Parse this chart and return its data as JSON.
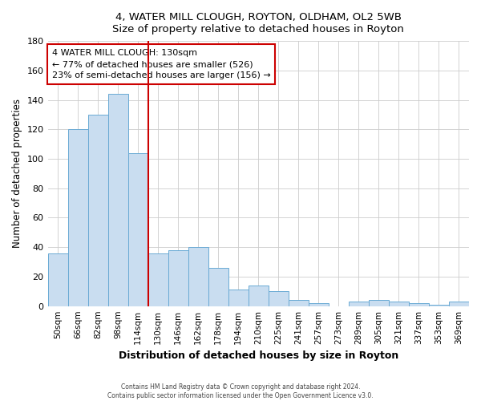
{
  "title1": "4, WATER MILL CLOUGH, ROYTON, OLDHAM, OL2 5WB",
  "title2": "Size of property relative to detached houses in Royton",
  "xlabel": "Distribution of detached houses by size in Royton",
  "ylabel": "Number of detached properties",
  "categories": [
    "50sqm",
    "66sqm",
    "82sqm",
    "98sqm",
    "114sqm",
    "130sqm",
    "146sqm",
    "162sqm",
    "178sqm",
    "194sqm",
    "210sqm",
    "225sqm",
    "241sqm",
    "257sqm",
    "273sqm",
    "289sqm",
    "305sqm",
    "321sqm",
    "337sqm",
    "353sqm",
    "369sqm"
  ],
  "values": [
    36,
    120,
    130,
    144,
    104,
    36,
    38,
    40,
    26,
    11,
    14,
    10,
    4,
    2,
    0,
    3,
    4,
    3,
    2,
    1,
    3
  ],
  "bar_color": "#c9ddf0",
  "bar_edge_color": "#6aaad4",
  "vline_color": "#cc0000",
  "annotation_text": "4 WATER MILL CLOUGH: 130sqm\n← 77% of detached houses are smaller (526)\n23% of semi-detached houses are larger (156) →",
  "annotation_box_color": "#ffffff",
  "annotation_box_edge": "#cc0000",
  "ylim": [
    0,
    180
  ],
  "yticks": [
    0,
    20,
    40,
    60,
    80,
    100,
    120,
    140,
    160,
    180
  ],
  "footer1": "Contains HM Land Registry data © Crown copyright and database right 2024.",
  "footer2": "Contains public sector information licensed under the Open Government Licence v3.0.",
  "bg_color": "#ffffff",
  "plot_bg_color": "#ffffff",
  "grid_color": "#cccccc"
}
